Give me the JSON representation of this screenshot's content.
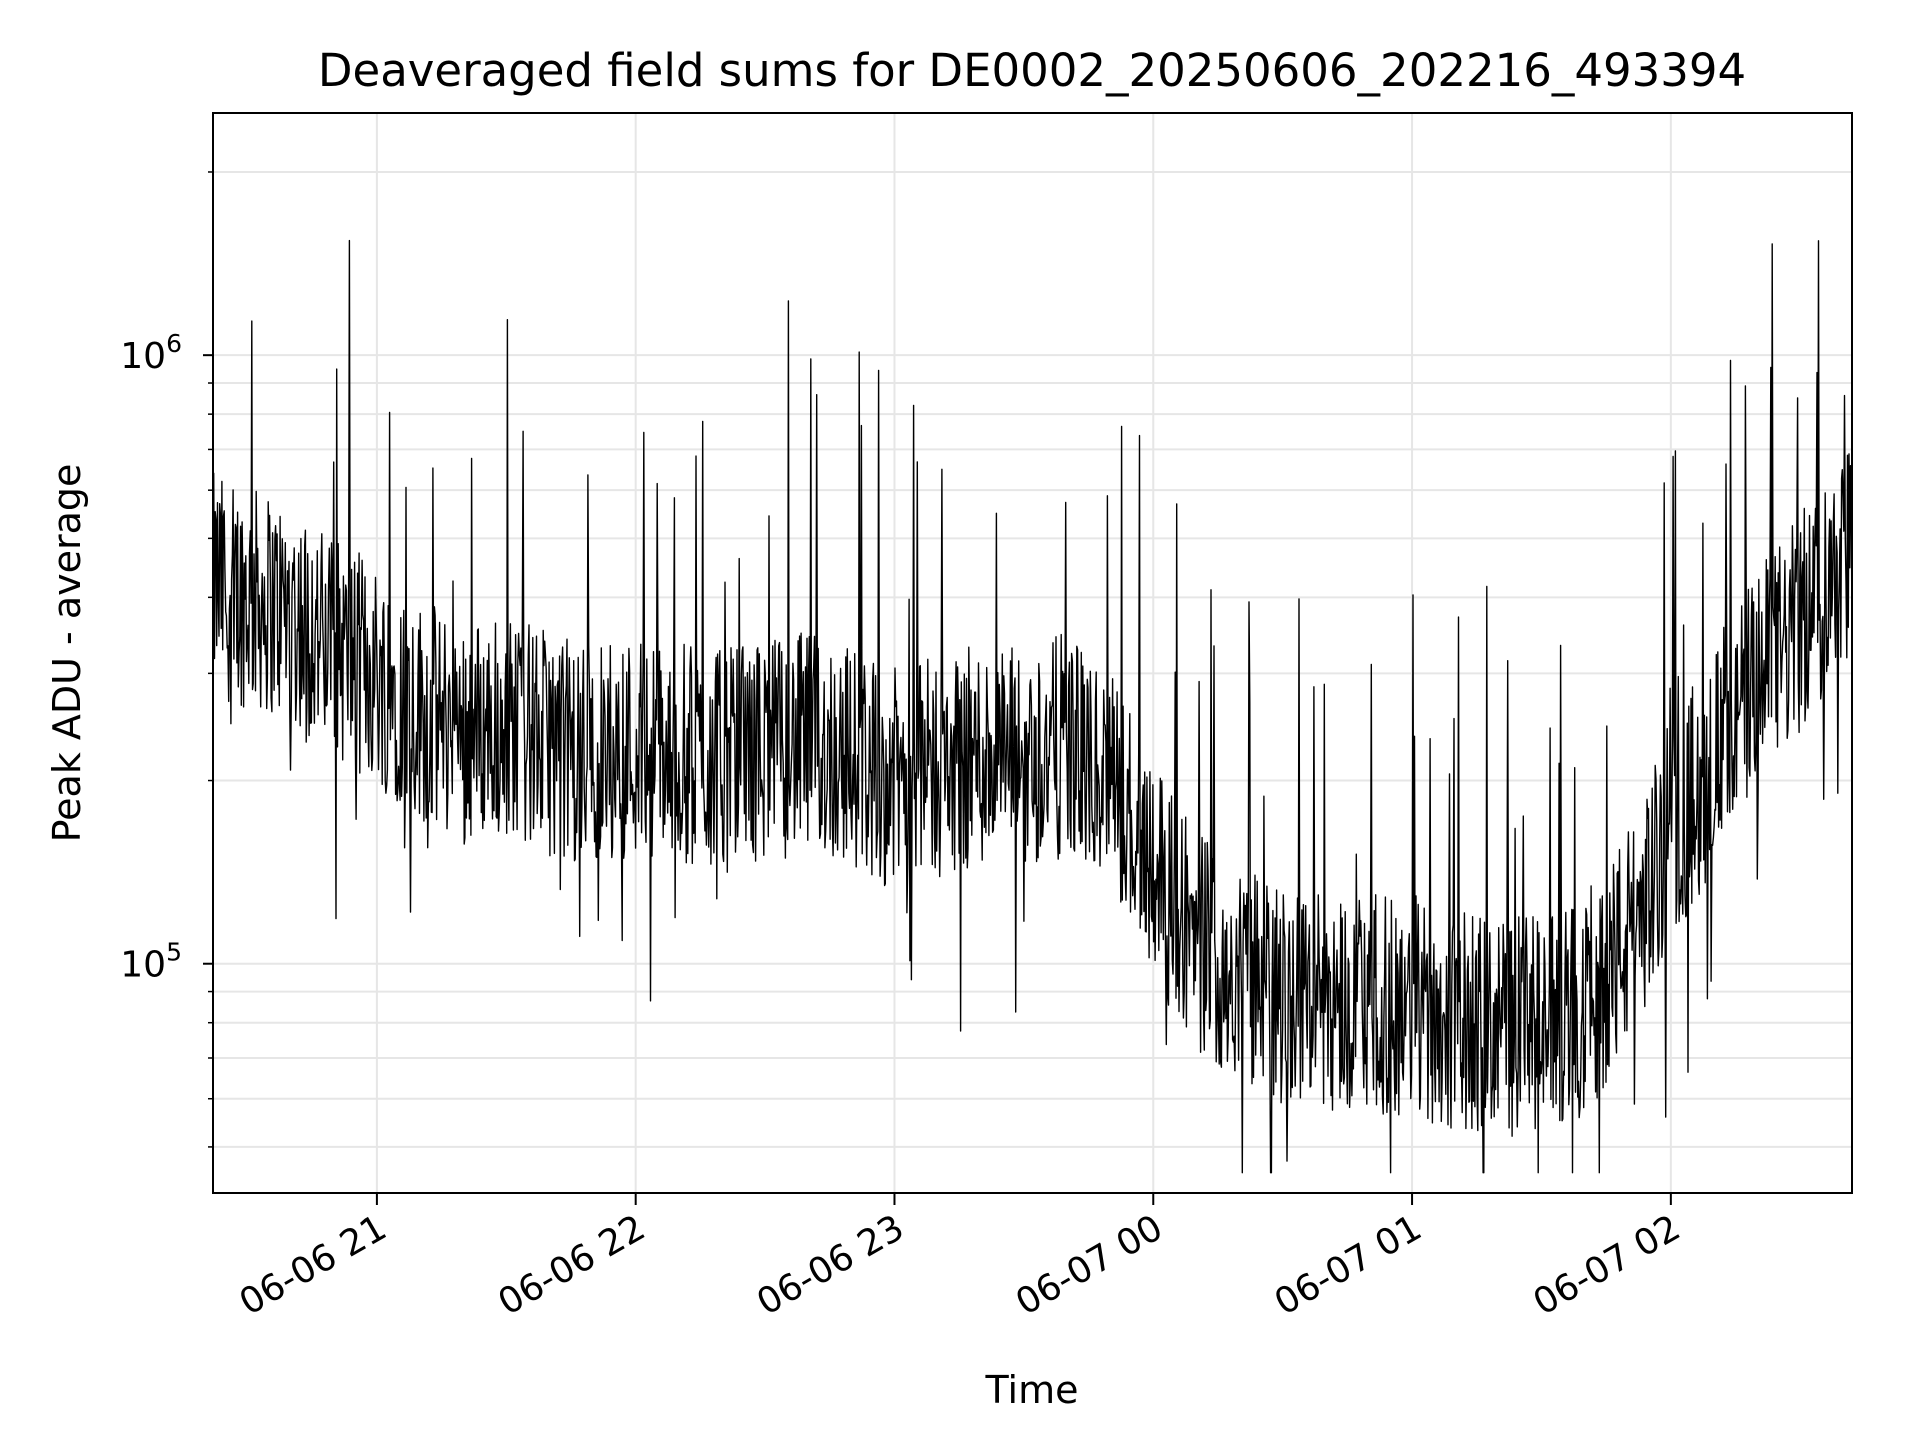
{
  "chart_data": {
    "type": "line",
    "title": "Deaveraged field sums for DE0002_20250606_202216_493394",
    "xlabel": "Time",
    "ylabel": "Peak ADU - average",
    "yscale": "log",
    "ylim": [
      42000,
      2500000
    ],
    "xlim": [
      "2025-06-06 20:22",
      "2025-06-07 02:42"
    ],
    "grid": true,
    "line_color": "#000000",
    "x_ticks": [
      {
        "label": "06-06 21",
        "time": "2025-06-06 21:00"
      },
      {
        "label": "06-06 22",
        "time": "2025-06-06 22:00"
      },
      {
        "label": "06-06 23",
        "time": "2025-06-06 23:00"
      },
      {
        "label": "06-07 00",
        "time": "2025-06-07 00:00"
      },
      {
        "label": "06-07 01",
        "time": "2025-06-07 01:00"
      },
      {
        "label": "06-07 02",
        "time": "2025-06-07 02:00"
      }
    ],
    "y_ticks": [
      {
        "base": "10",
        "exp": "5",
        "value": 100000
      },
      {
        "base": "10",
        "exp": "6",
        "value": 1000000
      }
    ],
    "series": [
      {
        "x": [
          "2025-06-06 20:22",
          "2025-06-06 20:30",
          "2025-06-06 20:40",
          "2025-06-06 20:50",
          "2025-06-06 21:00",
          "2025-06-06 21:10",
          "2025-06-06 21:20",
          "2025-06-06 21:30",
          "2025-06-06 21:40",
          "2025-06-06 21:50",
          "2025-06-06 22:00",
          "2025-06-06 22:10",
          "2025-06-06 22:20",
          "2025-06-06 22:30",
          "2025-06-06 22:40",
          "2025-06-06 22:50",
          "2025-06-06 23:00",
          "2025-06-06 23:10",
          "2025-06-06 23:20",
          "2025-06-06 23:30",
          "2025-06-06 23:40",
          "2025-06-06 23:50",
          "2025-06-07 00:00",
          "2025-06-07 00:10",
          "2025-06-07 00:20",
          "2025-06-07 00:30",
          "2025-06-07 00:40",
          "2025-06-07 00:50",
          "2025-06-07 01:00",
          "2025-06-07 01:10",
          "2025-06-07 01:20",
          "2025-06-07 01:30",
          "2025-06-07 01:40",
          "2025-06-07 01:50",
          "2025-06-07 02:00",
          "2025-06-07 02:10",
          "2025-06-07 02:20",
          "2025-06-07 02:30",
          "2025-06-07 02:42"
        ],
        "y": [
          420000,
          400000,
          380000,
          330000,
          300000,
          260000,
          240000,
          250000,
          230000,
          220000,
          230000,
          220000,
          215000,
          225000,
          230000,
          220000,
          200000,
          210000,
          220000,
          215000,
          230000,
          200000,
          150000,
          110000,
          95000,
          90000,
          88000,
          85000,
          85000,
          80000,
          80000,
          78000,
          85000,
          110000,
          160000,
          220000,
          290000,
          360000,
          500000
        ]
      }
    ]
  }
}
